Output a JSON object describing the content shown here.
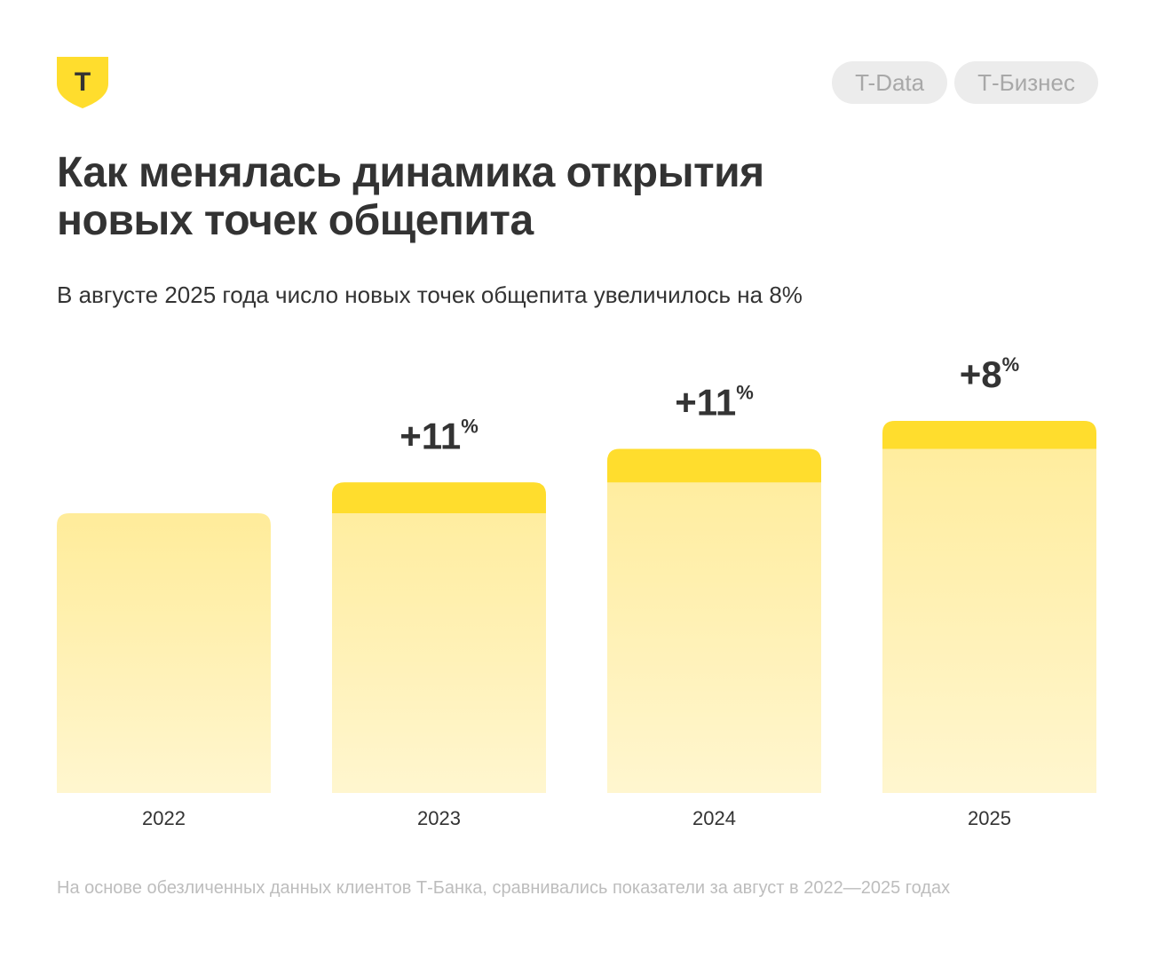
{
  "brand": {
    "logo_letter": "Т",
    "colors": {
      "yellow": "#FFDD2D",
      "bar_top": "#FFEC9A",
      "bar_bottom": "#FFF6CF",
      "text": "#333333",
      "tag_bg": "#ECECEC",
      "tag_text": "#A8A8A8",
      "footnote": "#BDBDBD"
    }
  },
  "tags": [
    "T-Data",
    "Т-Бизнес"
  ],
  "header": {
    "title_line1": "Как менялась динамика открытия",
    "title_line2": "новых точек общепита",
    "subtitle": "В августе 2025 года число новых точек общепита увеличилось на 8%"
  },
  "chart_data": {
    "type": "bar",
    "categories": [
      "2022",
      "2023",
      "2024",
      "2025"
    ],
    "values": [
      100,
      111,
      123,
      133
    ],
    "growth_labels": [
      "",
      "+11",
      "+11",
      "+8"
    ],
    "growth_unit": "%",
    "title": "Как менялась динамика открытия новых точек общепита",
    "xlabel": "",
    "ylabel": "",
    "ylim": [
      0,
      133
    ],
    "grid": false
  },
  "footnote": "На основе обезличенных данных клиентов Т-Банка, сравнивались показатели за август в 2022—2025 годах"
}
